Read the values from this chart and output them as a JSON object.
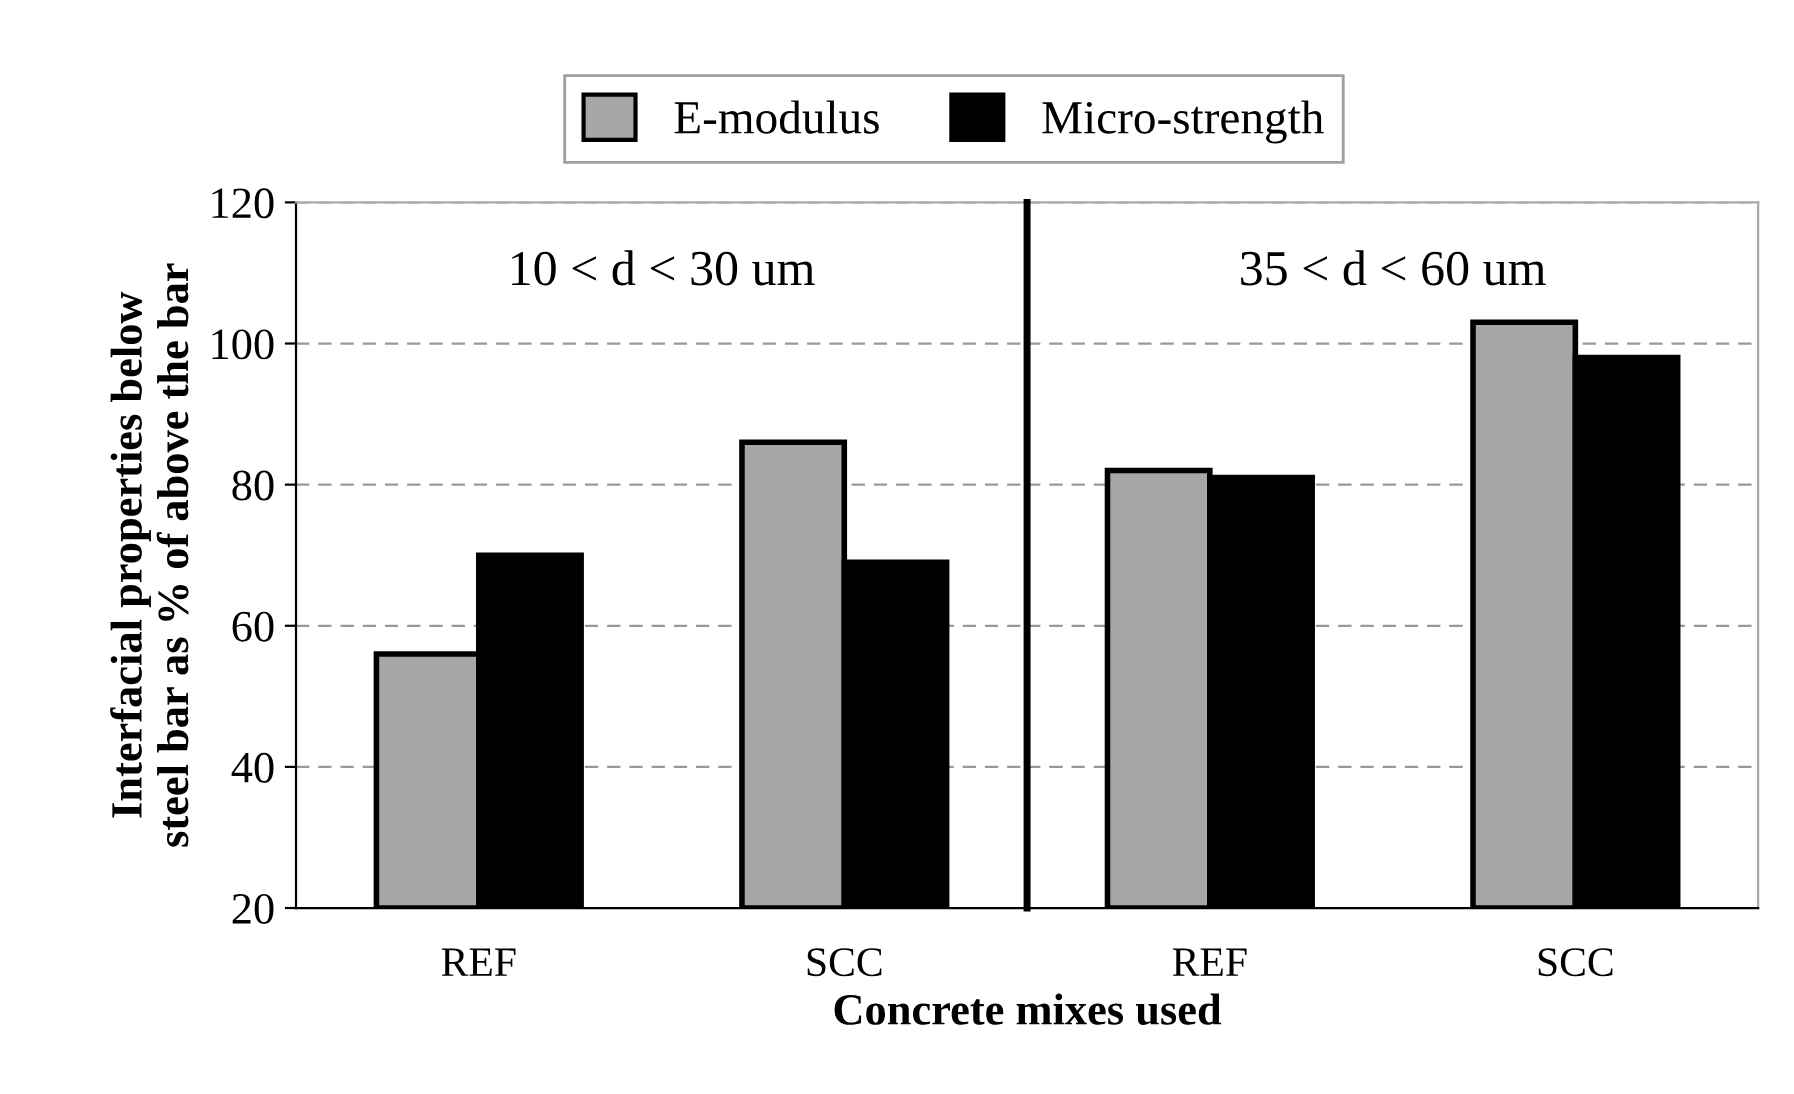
{
  "chart_data": [
    {
      "type": "bar",
      "xlabel": "Concrete mixes used",
      "ylabel": "Interfacial properties below\nsteel bar as % of above the bar",
      "categories": [
        "REF",
        "SCC"
      ],
      "series": [
        {
          "name": "E-modulus",
          "color": "#a6a6a6",
          "values": [
            56,
            86
          ]
        },
        {
          "name": "Micro-strength",
          "color": "#000000",
          "values": [
            70,
            69
          ]
        }
      ],
      "ylim": [
        20,
        120
      ],
      "yticks": [
        20,
        40,
        60,
        80,
        100,
        120
      ],
      "grid": "y",
      "legend": "top",
      "annotations": [
        "10 < d < 30 um"
      ]
    },
    {
      "type": "bar",
      "categories": [
        "REF",
        "SCC"
      ],
      "series": [
        {
          "color": "#a6a6a6",
          "values": [
            82,
            103
          ]
        },
        {
          "color": "#000000",
          "values": [
            81,
            98
          ]
        }
      ],
      "ylim": [
        20,
        120
      ],
      "yticks": [
        20,
        40,
        60,
        80,
        100,
        120
      ],
      "grid": "y",
      "tick_labels": "x",
      "annotations": [
        "35 < d < 60 um"
      ]
    }
  ]
}
